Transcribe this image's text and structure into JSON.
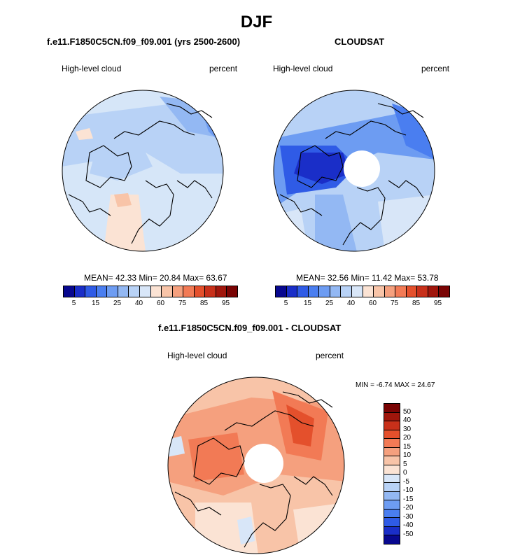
{
  "title": "DJF",
  "panels": [
    {
      "name": "f.e11.F1850C5CN.f09_f09.001 (yrs 2500-2600)",
      "left_label": "High-level cloud",
      "right_label": "percent",
      "stats": "MEAN=  42.33  Min=  20.84  Max=  63.67"
    },
    {
      "name": "CLOUDSAT",
      "left_label": "High-level cloud",
      "right_label": "percent",
      "stats": "MEAN=  32.56  Min=  11.42  Max=  53.78"
    },
    {
      "name": "f.e11.F1850C5CN.f09_f09.001 - CLOUDSAT",
      "left_label": "High-level cloud",
      "right_label": "percent",
      "stats": "MIN =  -6.74 MAX =  24.67"
    }
  ],
  "abs_colorbar": {
    "colors": [
      "#08088f",
      "#1a2ec8",
      "#2f5be6",
      "#4a7ef0",
      "#6d9cf2",
      "#93b8f3",
      "#b8d2f6",
      "#d8e6f8",
      "#fbe3d4",
      "#f8c4a8",
      "#f5a07e",
      "#f27a55",
      "#e4502c",
      "#c8301a",
      "#a0160c",
      "#7a0404"
    ],
    "tick_labels": [
      "5",
      "15",
      "25",
      "40",
      "60",
      "75",
      "85",
      "95"
    ]
  },
  "diff_colorbar": {
    "colors": [
      "#7a0404",
      "#a0160c",
      "#c8301a",
      "#e4502c",
      "#f27a55",
      "#f5a07e",
      "#f8c4a8",
      "#fbe3d4",
      "#d8e6f8",
      "#b8d2f6",
      "#93b8f3",
      "#6d9cf2",
      "#4a7ef0",
      "#2f5be6",
      "#1a2ec8",
      "#08088f"
    ],
    "tick_labels": [
      "50",
      "40",
      "30",
      "20",
      "15",
      "10",
      "5",
      "0",
      "-5",
      "-10",
      "-15",
      "-20",
      "-30",
      "-40",
      "-50"
    ]
  },
  "colors": {
    "model_base": "#d6e6f8",
    "cloudsat_base": "#b8d2f6",
    "diff_base": "#f8c4a8",
    "coast": "#000000"
  }
}
